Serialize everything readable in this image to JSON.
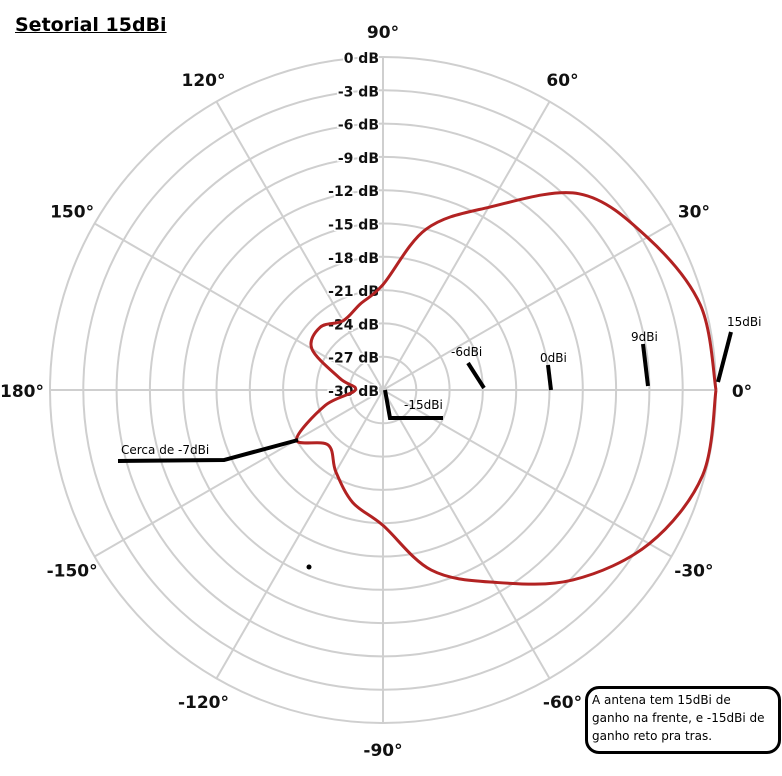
{
  "chart_data": {
    "type": "polar-line",
    "title": "Setorial 15dBi",
    "angle_ticks": [
      {
        "angle": 90,
        "label": "90°"
      },
      {
        "angle": 60,
        "label": "60°"
      },
      {
        "angle": 30,
        "label": "30°"
      },
      {
        "angle": 0,
        "label": "0°"
      },
      {
        "angle": -30,
        "label": "-30°"
      },
      {
        "angle": -60,
        "label": "-60°"
      },
      {
        "angle": -90,
        "label": "-90°"
      },
      {
        "angle": -120,
        "label": "-120°"
      },
      {
        "angle": -150,
        "label": "-150°"
      },
      {
        "angle": 180,
        "label": "180°"
      },
      {
        "angle": 150,
        "label": "150°"
      },
      {
        "angle": 120,
        "label": "120°"
      }
    ],
    "radial_ticks": [
      {
        "value": 0,
        "label": "0 dB"
      },
      {
        "value": -3,
        "label": "-3 dB"
      },
      {
        "value": -6,
        "label": "-6 dB"
      },
      {
        "value": -9,
        "label": "-9 dB"
      },
      {
        "value": -12,
        "label": "-12 dB"
      },
      {
        "value": -15,
        "label": "-15 dB"
      },
      {
        "value": -18,
        "label": "-18 dB"
      },
      {
        "value": -21,
        "label": "-21 dB"
      },
      {
        "value": -24,
        "label": "-24 dB"
      },
      {
        "value": -27,
        "label": "-27 dB"
      },
      {
        "value": -30,
        "label": "-30 dB"
      }
    ],
    "rlim": [
      -30,
      0
    ],
    "grid": true,
    "series_color": "#b22222",
    "series": [
      {
        "angles": [
          0,
          15,
          30,
          45,
          60,
          75,
          90,
          105,
          120,
          135,
          150,
          165,
          180,
          -165,
          -150,
          -135,
          -120,
          -105,
          -90,
          -75,
          -60,
          -45,
          -30,
          -15,
          0
        ],
        "values": [
          0,
          -0.4,
          -2.5,
          -5,
          -11,
          -15,
          -20.5,
          -22,
          -22.8,
          -22,
          -22.6,
          -26,
          -27.5,
          -24.6,
          -21,
          -23,
          -21.5,
          -19.5,
          -17.8,
          -13.2,
          -10,
          -5.8,
          -2.3,
          -0.2,
          0
        ]
      }
    ],
    "annotations": [
      "15dBi",
      "9dBi",
      "0dBi",
      "-6dBi",
      "-15dBi",
      "Cerca de -7dBi"
    ]
  },
  "note": {
    "line1": "A antena tem 15dBi de",
    "line2": "ganho na frente, e -15dBi de",
    "line3": "ganho reto pra tras."
  }
}
